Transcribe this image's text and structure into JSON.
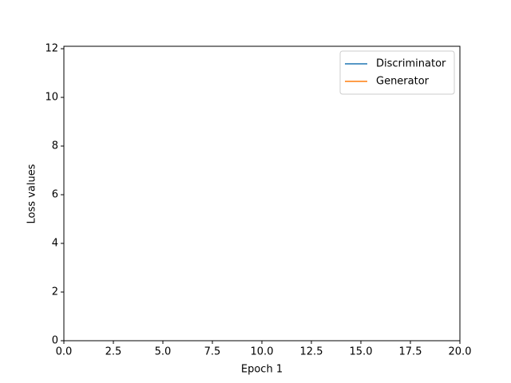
{
  "chart_data": {
    "type": "line",
    "xlabel": "Epoch 1",
    "ylabel": "Loss values",
    "x": [],
    "series": [
      {
        "name": "Discriminator",
        "color": "#1f77b4",
        "values": []
      },
      {
        "name": "Generator",
        "color": "#ff7f0e",
        "values": []
      }
    ],
    "xlim": [
      0,
      20
    ],
    "xticks": [
      {
        "value": 0,
        "label": "0.0"
      },
      {
        "value": 2.5,
        "label": "2.5"
      },
      {
        "value": 5,
        "label": "5.0"
      },
      {
        "value": 7.5,
        "label": "7.5"
      },
      {
        "value": 10,
        "label": "10.0"
      },
      {
        "value": 12.5,
        "label": "12.5"
      },
      {
        "value": 15,
        "label": "15.0"
      },
      {
        "value": 17.5,
        "label": "17.5"
      },
      {
        "value": 20,
        "label": "20.0"
      }
    ],
    "ylim": [
      0,
      12.1
    ],
    "yticks": [
      0,
      2,
      4,
      6,
      8,
      10,
      12
    ],
    "legend": "upper right"
  }
}
